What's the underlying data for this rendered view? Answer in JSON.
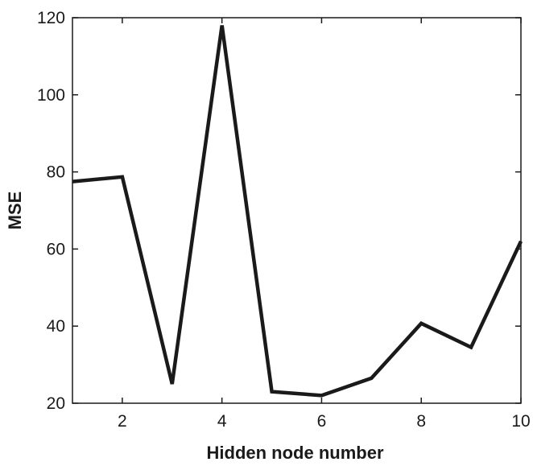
{
  "chart_data": {
    "type": "line",
    "title": "",
    "xlabel": "Hidden node number",
    "ylabel": "MSE",
    "xlim": [
      1,
      10
    ],
    "ylim": [
      20,
      120
    ],
    "xticks": [
      2,
      4,
      6,
      8,
      10
    ],
    "xtick_labels": [
      "2",
      "4",
      "6",
      "8",
      "10"
    ],
    "yticks": [
      20,
      40,
      60,
      80,
      100,
      120
    ],
    "ytick_labels": [
      "20",
      "40",
      "60",
      "80",
      "100",
      "120"
    ],
    "grid": false,
    "line_color": "#1a1a1a",
    "series": [
      {
        "x": [
          1,
          2,
          3,
          4,
          5,
          6,
          7,
          8,
          9,
          10
        ],
        "values": [
          77.5,
          78.7,
          25,
          118,
          23,
          22,
          26.5,
          40.7,
          34.5,
          62
        ]
      }
    ]
  }
}
